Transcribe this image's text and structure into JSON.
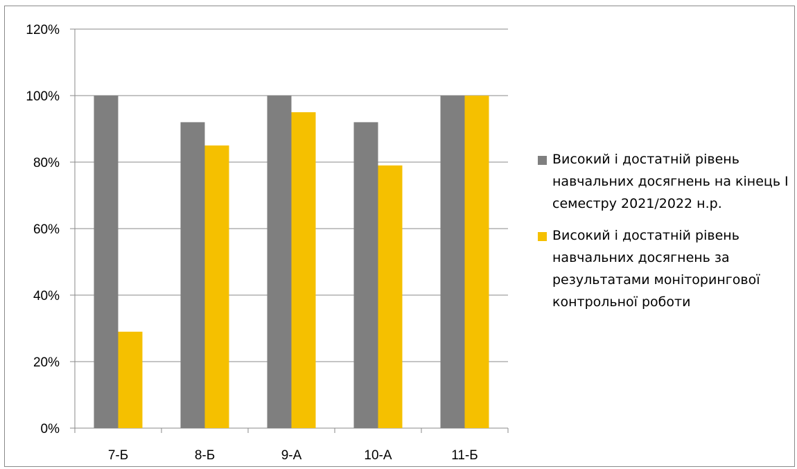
{
  "chart_data": {
    "type": "bar",
    "categories": [
      "7-Б",
      "8-Б",
      "9-А",
      "10-А",
      "11-Б"
    ],
    "series": [
      {
        "name": "Високий і достатній рівень навчальних досягнень на кінець I семестру 2021/2022 н.р.",
        "values": [
          100,
          92,
          100,
          92,
          100
        ],
        "color": "#7f7f7f"
      },
      {
        "name": "Високий і достатній рівень навчальних досягнень за результатами моніторингової контрольної роботи",
        "values": [
          29,
          85,
          95,
          79,
          100
        ],
        "color": "#f5c000"
      }
    ],
    "yticks": [
      "0%",
      "20%",
      "40%",
      "60%",
      "80%",
      "100%",
      "120%"
    ],
    "ylim": [
      0,
      120
    ],
    "grid": true,
    "legend_position": "right"
  }
}
